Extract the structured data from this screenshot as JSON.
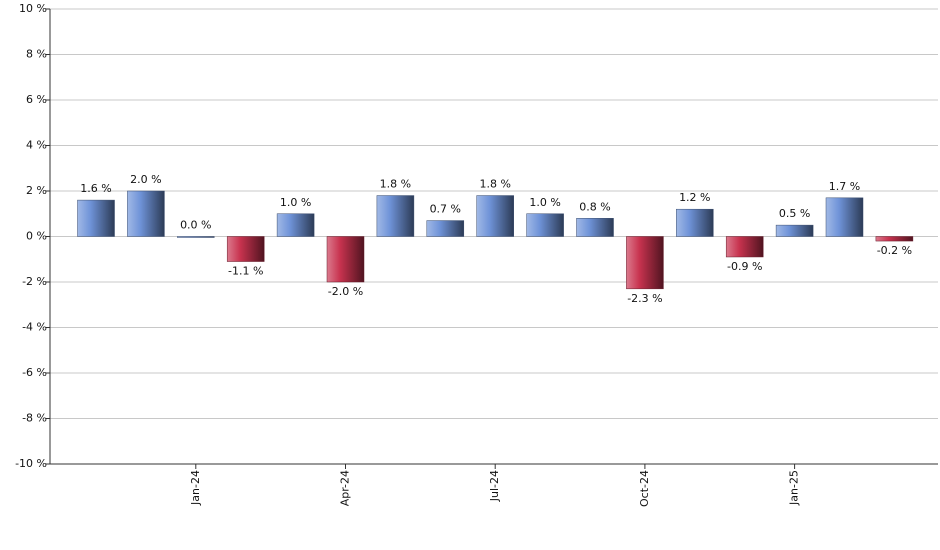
{
  "chart_data": {
    "type": "bar",
    "categories": [
      null,
      null,
      "Jan-24",
      null,
      null,
      "Apr-24",
      null,
      null,
      "Jul-24",
      null,
      null,
      "Oct-24",
      null,
      null,
      "Jan-25",
      null,
      null
    ],
    "values": [
      1.6,
      2.0,
      0.0,
      -1.1,
      1.0,
      -2.0,
      1.8,
      0.7,
      1.8,
      1.0,
      0.8,
      -2.3,
      1.2,
      -0.9,
      0.5,
      1.7,
      -0.2
    ],
    "value_labels": [
      "1.6 %",
      "2.0 %",
      "0.0 %",
      "-1.1 %",
      "1.0 %",
      "-2.0 %",
      "1.8 %",
      "0.7 %",
      "1.8 %",
      "1.0 %",
      "0.8 %",
      "-2.3 %",
      "1.2 %",
      "-0.9 %",
      "0.5 %",
      "1.7 %",
      "-0.2 %"
    ],
    "color": "#6f93d8",
    "negative_color": "#c8334f",
    "ylim": [
      -10,
      10
    ],
    "yticks": [
      {
        "value": -10,
        "label": "-10 %"
      },
      {
        "value": -8,
        "label": "-8 %"
      },
      {
        "value": -6,
        "label": "-6 %"
      },
      {
        "value": -4,
        "label": "-4 %"
      },
      {
        "value": -2,
        "label": "-2 %"
      },
      {
        "value": 0,
        "label": "0 %"
      },
      {
        "value": 2,
        "label": "2 %"
      },
      {
        "value": 4,
        "label": "4 %"
      },
      {
        "value": 6,
        "label": "6 %"
      },
      {
        "value": 8,
        "label": "8 %"
      },
      {
        "value": 10,
        "label": "10 %"
      }
    ],
    "grid": true
  }
}
